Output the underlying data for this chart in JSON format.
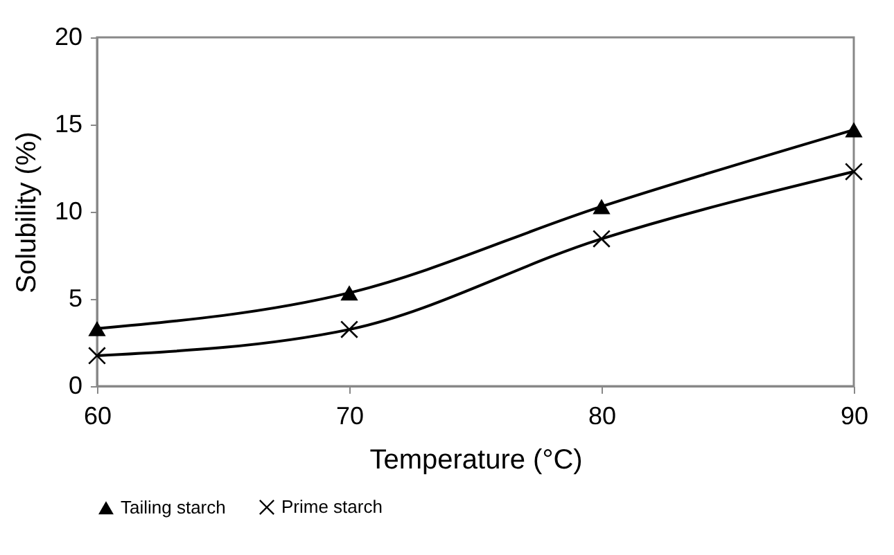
{
  "chart_data": {
    "type": "line",
    "xlabel": "Temperature (°C)",
    "ylabel": "Solubility  (%)",
    "x": [
      60,
      70,
      80,
      90
    ],
    "series": [
      {
        "name": "Tailing starch",
        "color": "#000000",
        "marker": "triangle",
        "values": [
          3.3,
          5.35,
          10.3,
          14.7
        ]
      },
      {
        "name": "Prime starch",
        "color": "#000000",
        "marker": "cross",
        "values": [
          1.75,
          3.25,
          8.45,
          12.3
        ]
      }
    ],
    "xlim": [
      60,
      90
    ],
    "xticks": [
      60,
      70,
      80,
      90
    ],
    "ylim": [
      0,
      20
    ],
    "yticks": [
      0,
      5,
      10,
      15,
      20
    ],
    "grid": false,
    "legend": "bottom",
    "line_style": "solid"
  }
}
